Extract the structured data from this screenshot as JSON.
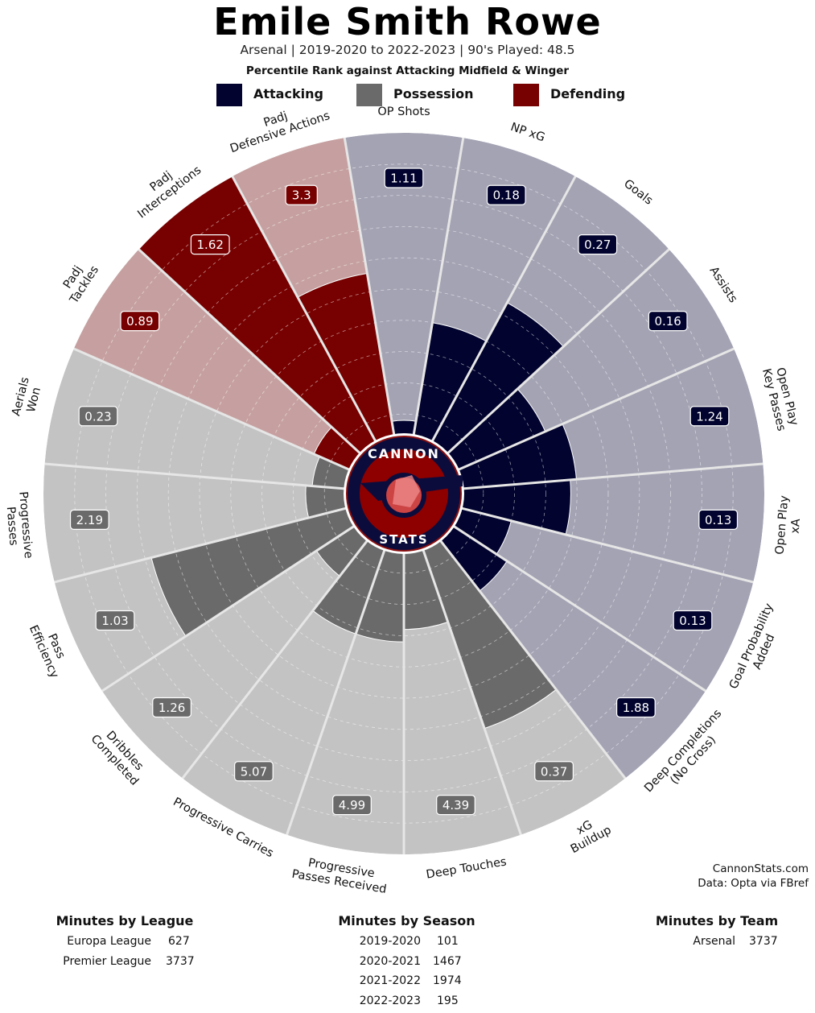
{
  "header": {
    "title": "Emile Smith Rowe",
    "subtitle": "Arsenal | 2019-2020 to 2022-2023 | 90's Played: 48.5",
    "subtitle2": "Percentile Rank against Attacking Midfield & Winger"
  },
  "legend": [
    {
      "label": "Attacking",
      "color": "#02032e"
    },
    {
      "label": "Possession",
      "color": "#6a6a6a"
    },
    {
      "label": "Defending",
      "color": "#770000"
    }
  ],
  "colors": {
    "attacking": "#02032e",
    "attacking_bg": "#a3a3b4",
    "possession": "#6a6a6a",
    "possession_bg": "#c3c3c3",
    "defending": "#770000",
    "defending_bg": "#c6a0a0"
  },
  "chart_data": {
    "type": "polar-bar",
    "value_axis": "percentile rank",
    "rlim": [
      0,
      100
    ],
    "grid": true,
    "center_logo_text": [
      "CANNON",
      "STATS"
    ],
    "categories": [
      {
        "label": "OP Shots",
        "group": "attacking",
        "value": 1.11,
        "percentile": 8
      },
      {
        "label": "NP xG",
        "group": "attacking",
        "value": 0.18,
        "percentile": 40
      },
      {
        "label": "Goals",
        "group": "attacking",
        "value": 0.27,
        "percentile": 54
      },
      {
        "label": "Assists",
        "group": "attacking",
        "value": 0.16,
        "percentile": 34
      },
      {
        "label": "Open Play Key Passes",
        "group": "attacking",
        "value": 1.24,
        "percentile": 40
      },
      {
        "label": "Open Play xA",
        "group": "attacking",
        "value": 0.13,
        "percentile": 38
      },
      {
        "label": "Goal Probability Added",
        "group": "attacking",
        "value": 0.13,
        "percentile": 20
      },
      {
        "label": "Deep Completions (No Cross)",
        "group": "attacking",
        "value": 1.88,
        "percentile": 24
      },
      {
        "label": "xG Buildup",
        "group": "possession",
        "value": 0.37,
        "percentile": 64
      },
      {
        "label": "Deep Touches",
        "group": "possession",
        "value": 4.39,
        "percentile": 28
      },
      {
        "label": "Progressive Passes Received",
        "group": "possession",
        "value": 4.99,
        "percentile": 32
      },
      {
        "label": "Progressive Carries",
        "group": "possession",
        "value": 5.07,
        "percentile": 32
      },
      {
        "label": "Dribbles Completed",
        "group": "possession",
        "value": 1.26,
        "percentile": 18
      },
      {
        "label": "Pass Efficiency",
        "group": "possession",
        "value": 1.03,
        "percentile": 68
      },
      {
        "label": "Progressive Passes",
        "group": "possession",
        "value": 2.19,
        "percentile": 16
      },
      {
        "label": "Aerials Won",
        "group": "possession",
        "value": 0.23,
        "percentile": 14
      },
      {
        "label": "Padj Tackles",
        "group": "defending",
        "value": 0.89,
        "percentile": 16
      },
      {
        "label": "Padj Interceptions",
        "group": "defending",
        "value": 1.62,
        "percentile": 100
      },
      {
        "label": "Padj Defensive Actions",
        "group": "defending",
        "value": 3.3,
        "percentile": 56
      }
    ]
  },
  "credits": {
    "site": "CannonStats.com",
    "source": "Data: Opta via FBref"
  },
  "minutes_by_league": {
    "title": "Minutes by League",
    "rows": [
      {
        "name": "Europa League",
        "minutes": "627"
      },
      {
        "name": "Premier League",
        "minutes": "3737"
      }
    ]
  },
  "minutes_by_season": {
    "title": "Minutes by Season",
    "rows": [
      {
        "name": "2019-2020",
        "minutes": "101"
      },
      {
        "name": "2020-2021",
        "minutes": "1467"
      },
      {
        "name": "2021-2022",
        "minutes": "1974"
      },
      {
        "name": "2022-2023",
        "minutes": "195"
      }
    ]
  },
  "minutes_by_team": {
    "title": "Minutes by Team",
    "rows": [
      {
        "name": "Arsenal",
        "minutes": "3737"
      }
    ]
  }
}
